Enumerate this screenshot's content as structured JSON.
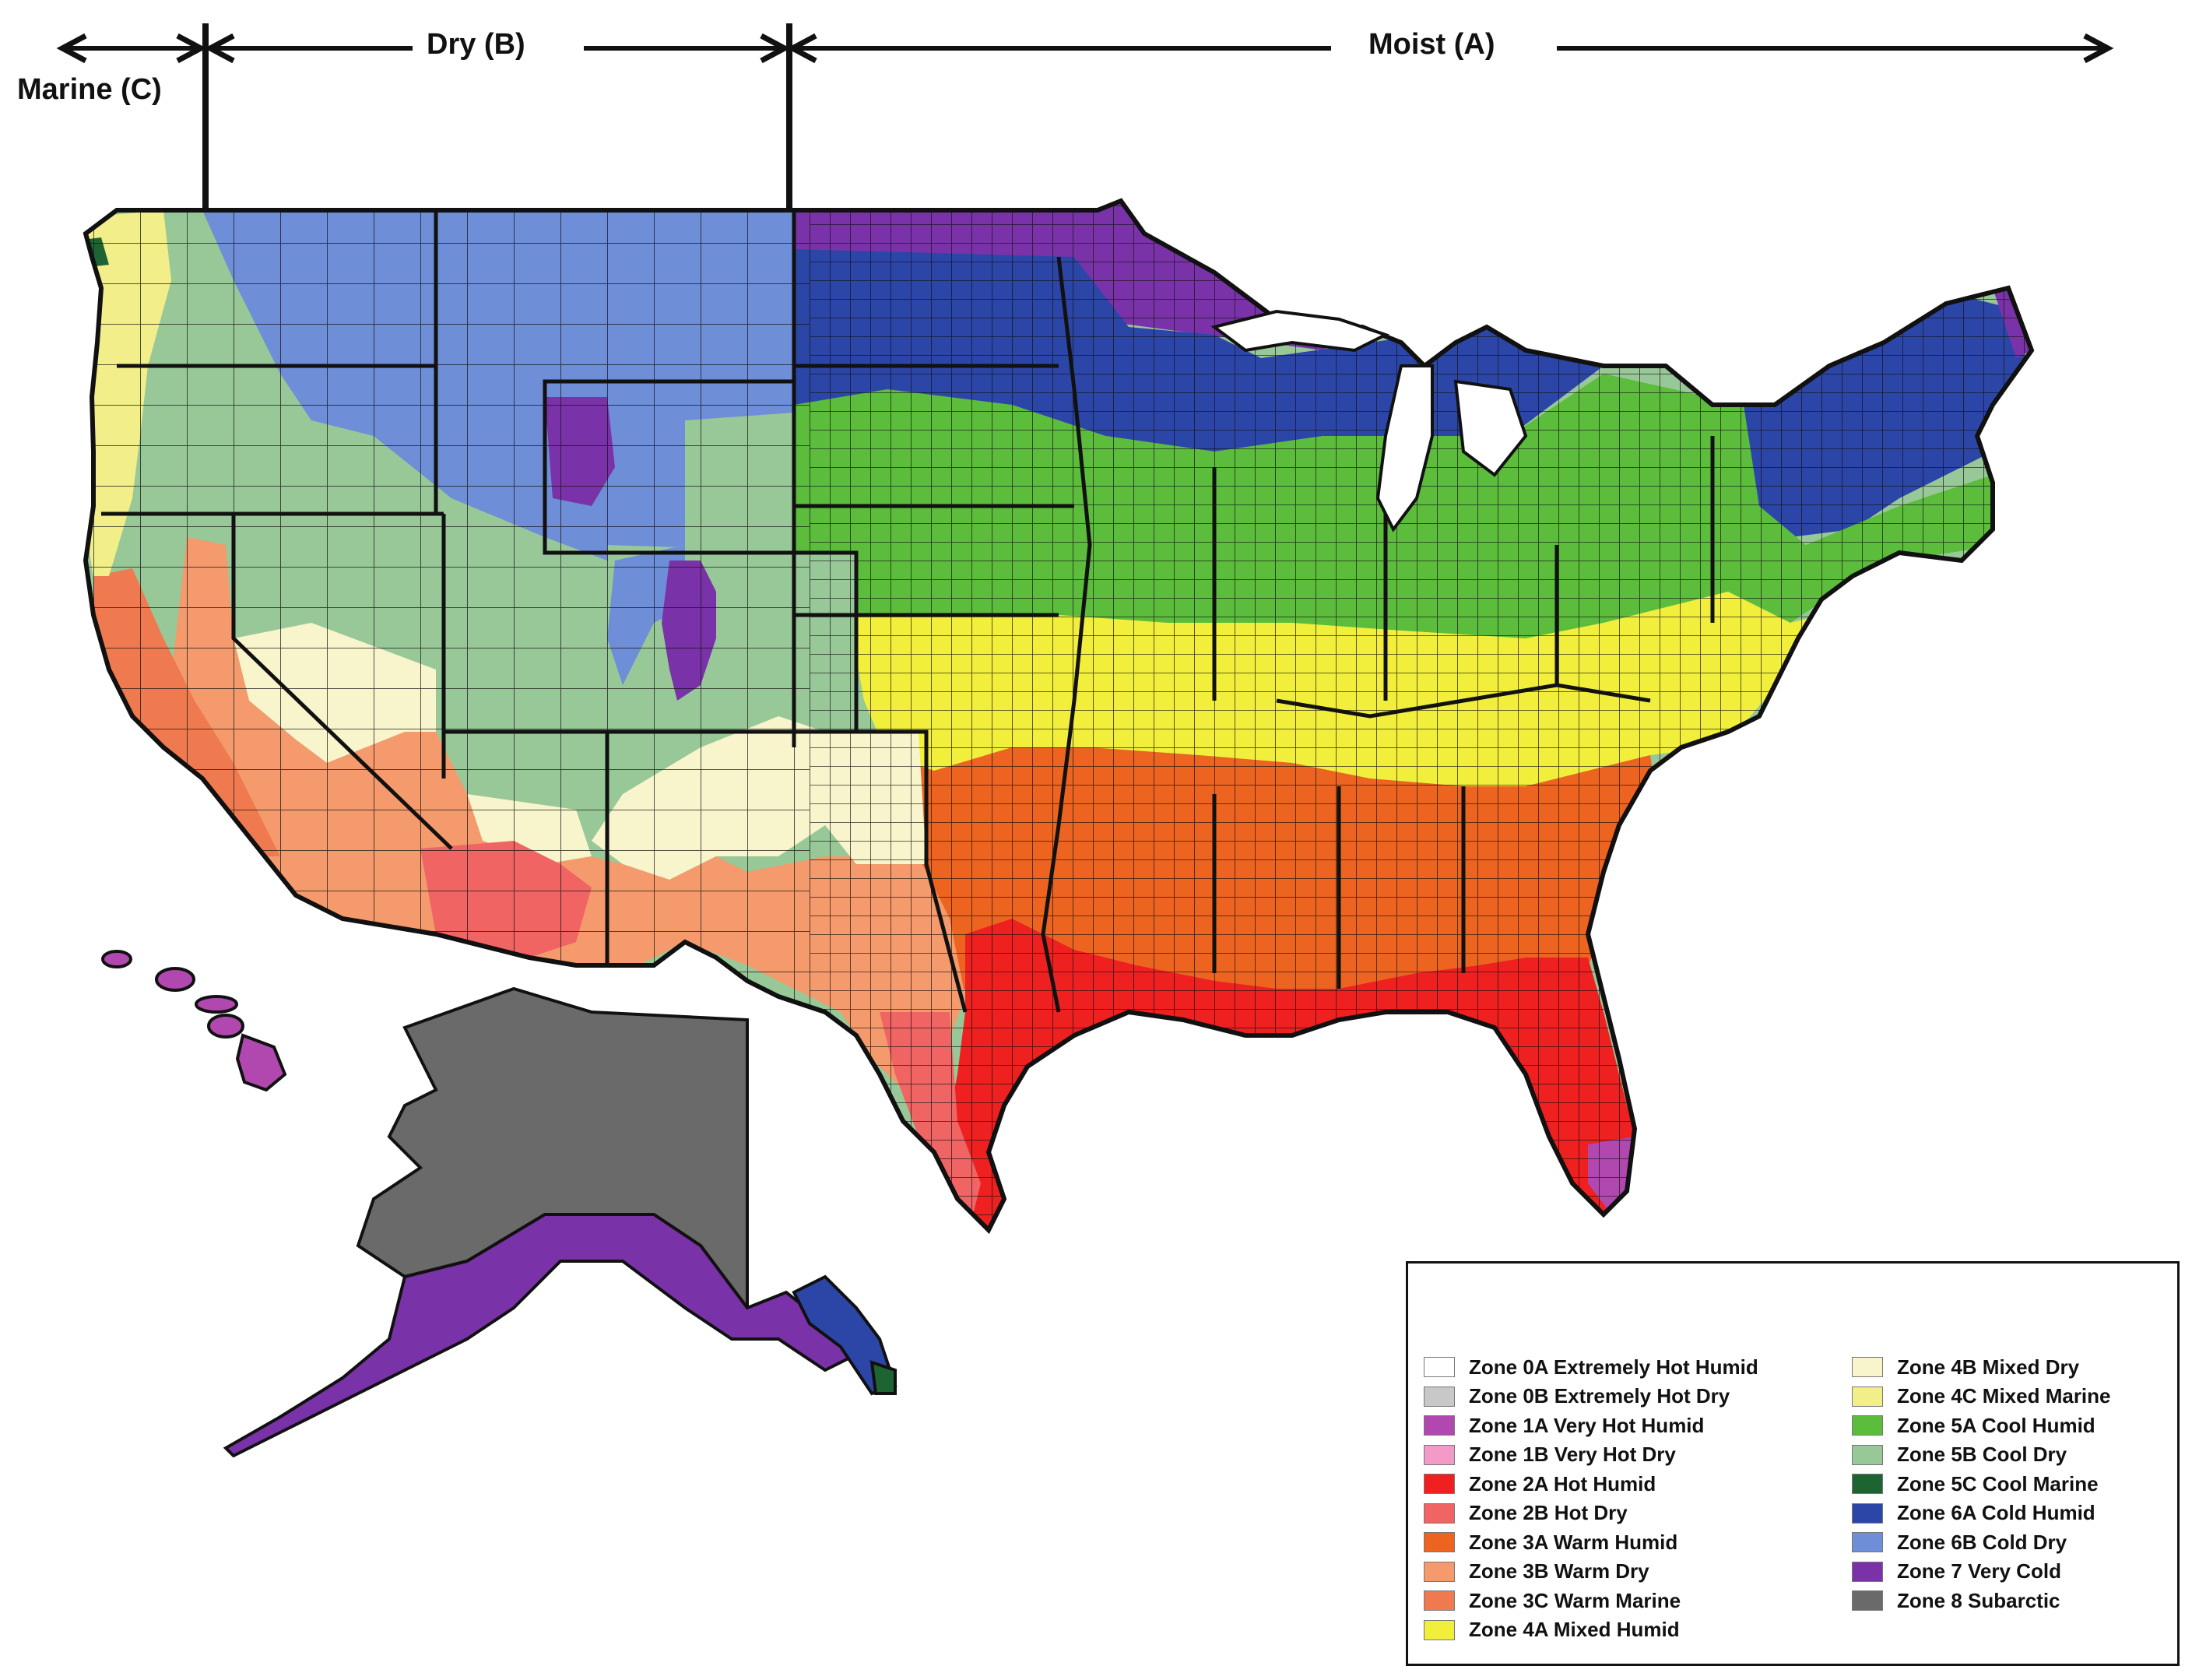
{
  "header": {
    "marine_label": "Marine (C)",
    "dry_label": "Dry (B)",
    "moist_label": "Moist (A)"
  },
  "colors": {
    "0A": "#ffffff",
    "0B": "#c8c8c8",
    "1A": "#b048b0",
    "1B": "#f29ac8",
    "2A": "#ee2020",
    "2B": "#f06464",
    "3A": "#ec6420",
    "3B": "#f49a6c",
    "3C": "#f07a50",
    "4A": "#f2ee3c",
    "4B": "#f8f4cc",
    "4C": "#f2ee8a",
    "5A": "#5cbc3c",
    "5B": "#98c898",
    "5C": "#1e6432",
    "6A": "#2c46a8",
    "6B": "#6e8ed8",
    "7": "#7a32a8",
    "8": "#6a6a6a",
    "outline": "#111111"
  },
  "legend": {
    "left": [
      {
        "zone": "0A",
        "label": "Zone 0A Extremely Hot Humid"
      },
      {
        "zone": "0B",
        "label": "Zone 0B Extremely Hot Dry"
      },
      {
        "zone": "1A",
        "label": "Zone 1A Very Hot Humid"
      },
      {
        "zone": "1B",
        "label": "Zone 1B Very Hot Dry"
      },
      {
        "zone": "2A",
        "label": "Zone 2A Hot Humid"
      },
      {
        "zone": "2B",
        "label": "Zone 2B Hot Dry"
      },
      {
        "zone": "3A",
        "label": "Zone 3A Warm Humid"
      },
      {
        "zone": "3B",
        "label": "Zone 3B Warm Dry"
      },
      {
        "zone": "3C",
        "label": "Zone 3C Warm Marine"
      },
      {
        "zone": "4A",
        "label": "Zone 4A Mixed Humid"
      }
    ],
    "right": [
      {
        "zone": "4B",
        "label": "Zone 4B Mixed Dry"
      },
      {
        "zone": "4C",
        "label": "Zone 4C Mixed Marine"
      },
      {
        "zone": "5A",
        "label": "Zone 5A Cool Humid"
      },
      {
        "zone": "5B",
        "label": "Zone 5B Cool Dry"
      },
      {
        "zone": "5C",
        "label": "Zone 5C Cool Marine"
      },
      {
        "zone": "6A",
        "label": "Zone 6A Cold Humid"
      },
      {
        "zone": "6B",
        "label": "Zone 6B Cold Dry"
      },
      {
        "zone": "7",
        "label": "Zone 7 Very Cold"
      },
      {
        "zone": "8",
        "label": "Zone 8 Subarctic"
      }
    ]
  }
}
